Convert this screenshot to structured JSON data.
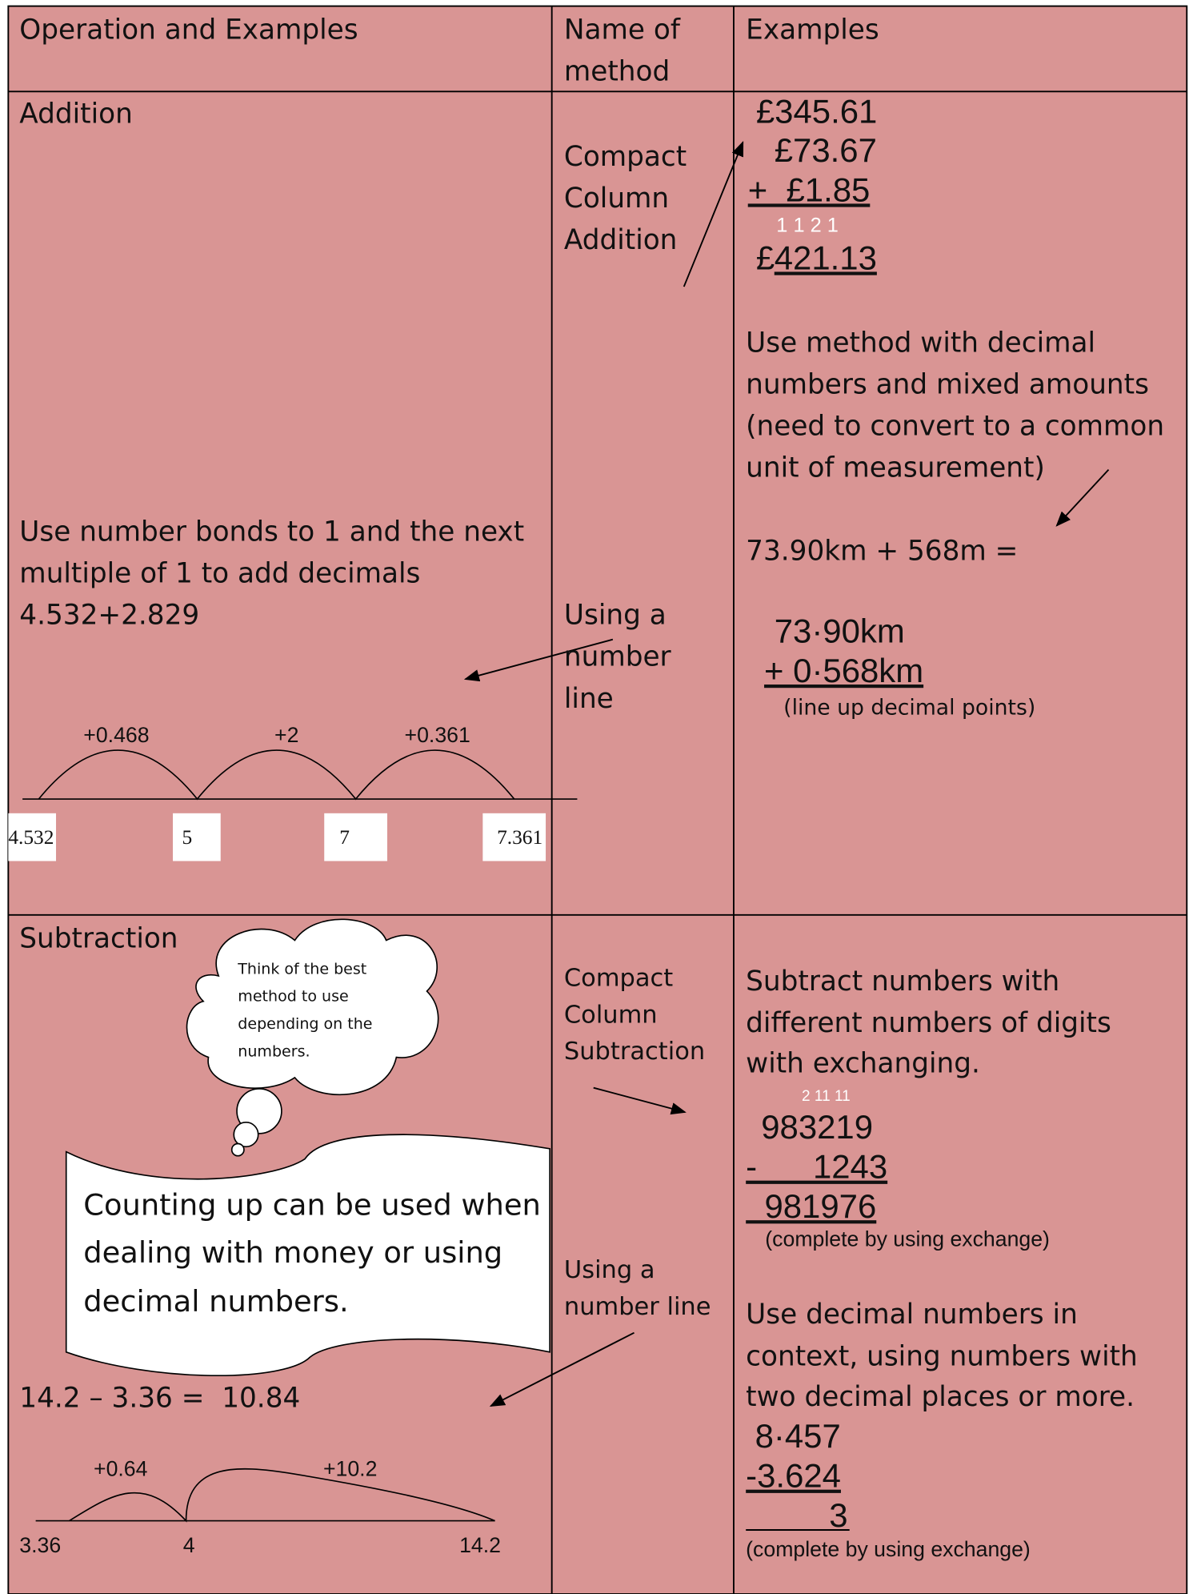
{
  "header": {
    "operation": "Operation and Examples",
    "method": [
      "Name of",
      "method"
    ],
    "examples": "Examples"
  },
  "addition": {
    "title": "Addition",
    "method_column": [
      "Compact",
      "Column",
      "Addition"
    ],
    "column_sum": {
      "lines": [
        "£345.61",
        "£73.67",
        "+  £1.85"
      ],
      "carries": "1 1 2 1",
      "answer_prefix": "£",
      "answer": "421.13"
    },
    "note": [
      "Use method with decimal",
      "numbers and mixed amounts",
      "(need to convert to a common",
      "unit of measurement)"
    ],
    "example": "73.90km + 568m =",
    "working": [
      "73·90km",
      "+ 0·568km"
    ],
    "working_note": "(line up decimal points)",
    "number_bonds": [
      "Use number bonds to 1 and the next",
      "multiple of 1 to add decimals",
      "4.532+2.829"
    ],
    "method_number_line": [
      "Using a",
      "number",
      "line"
    ],
    "number_line": {
      "jumps": [
        "+0.468",
        "+2",
        "+0.361"
      ],
      "points": [
        "4.532",
        "5",
        "7",
        "7.361"
      ]
    }
  },
  "subtraction": {
    "title": "Subtraction",
    "thought": [
      "Think of the best",
      "method to use",
      "depending on the",
      "numbers."
    ],
    "banner": [
      "Counting up can be used when",
      "dealing with money or using",
      "decimal numbers."
    ],
    "equation": "14.2 – 3.36 =  10.84",
    "number_line": {
      "jumps": [
        "+0.64",
        "+10.2"
      ],
      "points": [
        "3.36",
        "4",
        "14.2"
      ]
    },
    "method_column": [
      "Compact",
      "Column",
      "Subtraction"
    ],
    "method_number_line": [
      "Using a",
      "number line"
    ],
    "note": [
      "Subtract numbers with",
      "different numbers of digits",
      "with exchanging."
    ],
    "column_sum": {
      "carries": "2 11 11",
      "lines": [
        "983219",
        "-      1243",
        "  981976"
      ],
      "note": "(complete by using exchange)"
    },
    "decimal_note": [
      "Use decimal numbers in",
      "context, using numbers with",
      "two decimal places or more."
    ],
    "decimal_sum": {
      "lines": [
        "8·457",
        "-3.624",
        "3"
      ],
      "note": "(complete by using exchange)"
    }
  }
}
